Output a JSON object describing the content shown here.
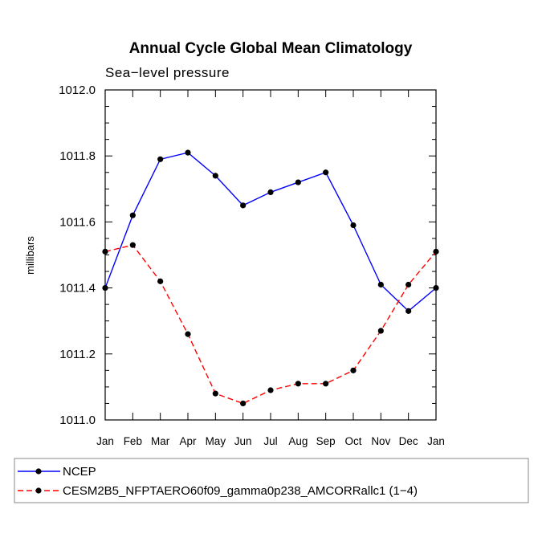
{
  "chart_data": {
    "type": "line",
    "title": "Annual Cycle Global Mean Climatology",
    "subtitle": "Sea−level pressure",
    "xlabel": "",
    "ylabel": "millibars",
    "categories": [
      "Jan",
      "Feb",
      "Mar",
      "Apr",
      "May",
      "Jun",
      "Jul",
      "Aug",
      "Sep",
      "Oct",
      "Nov",
      "Dec",
      "Jan"
    ],
    "ylim": [
      1011.0,
      1012.0
    ],
    "yticks": [
      "1011.0",
      "1011.2",
      "1011.4",
      "1011.6",
      "1011.8",
      "1012.0"
    ],
    "series": [
      {
        "name": "NCEP",
        "color": "#0000ff",
        "dash": "solid",
        "values": [
          1011.4,
          1011.62,
          1011.79,
          1011.81,
          1011.74,
          1011.65,
          1011.69,
          1011.72,
          1011.75,
          1011.59,
          1011.41,
          1011.33,
          1011.4
        ]
      },
      {
        "name": "CESM2B5_NFPTAERO60f09_gamma0p238_AMCORRallc1 (1−4)",
        "color": "#ff0000",
        "dash": "dashed",
        "values": [
          1011.51,
          1011.53,
          1011.42,
          1011.26,
          1011.08,
          1011.05,
          1011.09,
          1011.11,
          1011.11,
          1011.15,
          1011.27,
          1011.41,
          1011.51
        ]
      }
    ],
    "grid": false,
    "legend_position": "bottom-left"
  }
}
